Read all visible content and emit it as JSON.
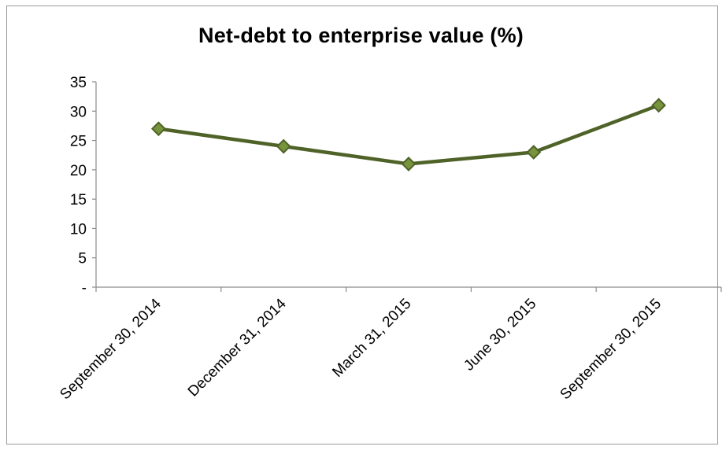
{
  "chart_data": {
    "type": "line",
    "title": "Net-debt to enterprise value (%)",
    "xlabel": "",
    "ylabel": "",
    "categories": [
      "September 30, 2014",
      "December 31, 2014",
      "March 31, 2015",
      "June 30, 2015",
      "September 30, 2015"
    ],
    "series": [
      {
        "values": [
          27,
          24,
          21,
          23,
          31
        ]
      }
    ],
    "ylim": [
      0,
      35
    ],
    "yticks": [
      0,
      5,
      10,
      15,
      20,
      25,
      30,
      35
    ],
    "ytick_labels": [
      "-",
      "5",
      "10",
      "15",
      "20",
      "25",
      "30",
      "35"
    ],
    "grid": false,
    "legend": "none",
    "line_color": "#4f6228",
    "marker_fill": "#77933c",
    "marker": "diamond"
  }
}
